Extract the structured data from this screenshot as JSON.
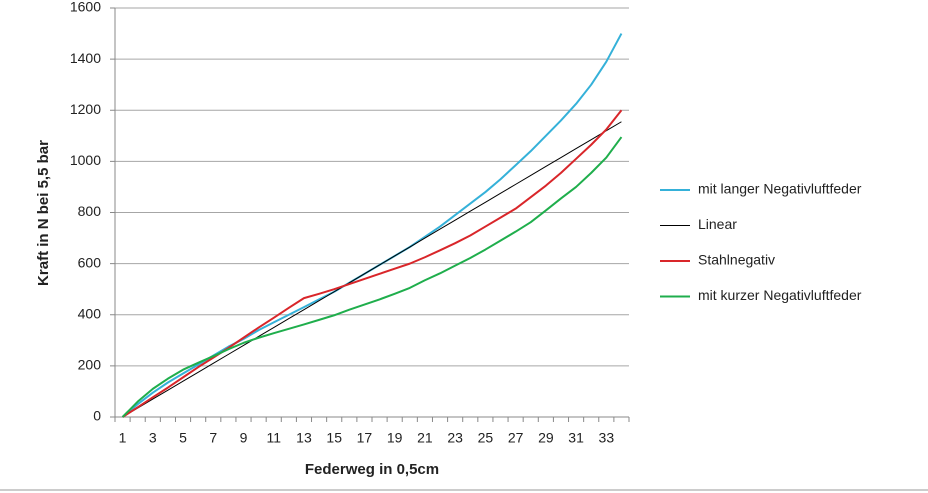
{
  "chart_data": {
    "type": "line",
    "x_label": "Federweg in 0,5cm",
    "y_label": "Kraft in N bei 5,5 bar",
    "categories": [
      1,
      null,
      3,
      null,
      5,
      null,
      7,
      null,
      9,
      null,
      11,
      null,
      13,
      null,
      15,
      null,
      17,
      null,
      19,
      null,
      21,
      null,
      23,
      null,
      25,
      null,
      27,
      null,
      29,
      null,
      31,
      null,
      33,
      null
    ],
    "series": [
      {
        "name": "mit langer Negativluftfeder",
        "color": "#35b1d9",
        "width": 2,
        "values": [
          0,
          50,
          95,
          135,
          170,
          205,
          240,
          275,
          305,
          340,
          370,
          400,
          430,
          460,
          490,
          525,
          560,
          595,
          630,
          665,
          705,
          745,
          790,
          835,
          880,
          930,
          985,
          1040,
          1100,
          1160,
          1225,
          1300,
          1390,
          1500
        ]
      },
      {
        "name": "Linear",
        "color": "#000000",
        "width": 1,
        "values": [
          0,
          35,
          70,
          105,
          140,
          175,
          210,
          245,
          280,
          315,
          350,
          385,
          420,
          455,
          490,
          525,
          560,
          595,
          630,
          665,
          700,
          735,
          770,
          805,
          840,
          875,
          910,
          945,
          980,
          1015,
          1050,
          1085,
          1120,
          1155
        ]
      },
      {
        "name": "Stahlnegativ",
        "color": "#d9262a",
        "width": 2,
        "values": [
          0,
          38,
          77,
          115,
          155,
          195,
          232,
          270,
          310,
          350,
          388,
          427,
          465,
          482,
          500,
          520,
          540,
          560,
          580,
          600,
          625,
          652,
          680,
          710,
          745,
          780,
          815,
          860,
          905,
          955,
          1010,
          1065,
          1125,
          1200
        ]
      },
      {
        "name": "mit kurzer Negativluftfeder",
        "color": "#1fae4c",
        "width": 2,
        "values": [
          0,
          60,
          110,
          150,
          185,
          212,
          238,
          265,
          290,
          310,
          328,
          345,
          362,
          380,
          398,
          420,
          440,
          460,
          482,
          505,
          535,
          562,
          592,
          622,
          655,
          690,
          725,
          762,
          808,
          855,
          900,
          955,
          1015,
          1095
        ]
      }
    ],
    "ylim": [
      0,
      1600
    ],
    "yticks": [
      0,
      200,
      400,
      600,
      800,
      1000,
      1200,
      1400,
      1600
    ],
    "grid": true,
    "legend": "right"
  }
}
